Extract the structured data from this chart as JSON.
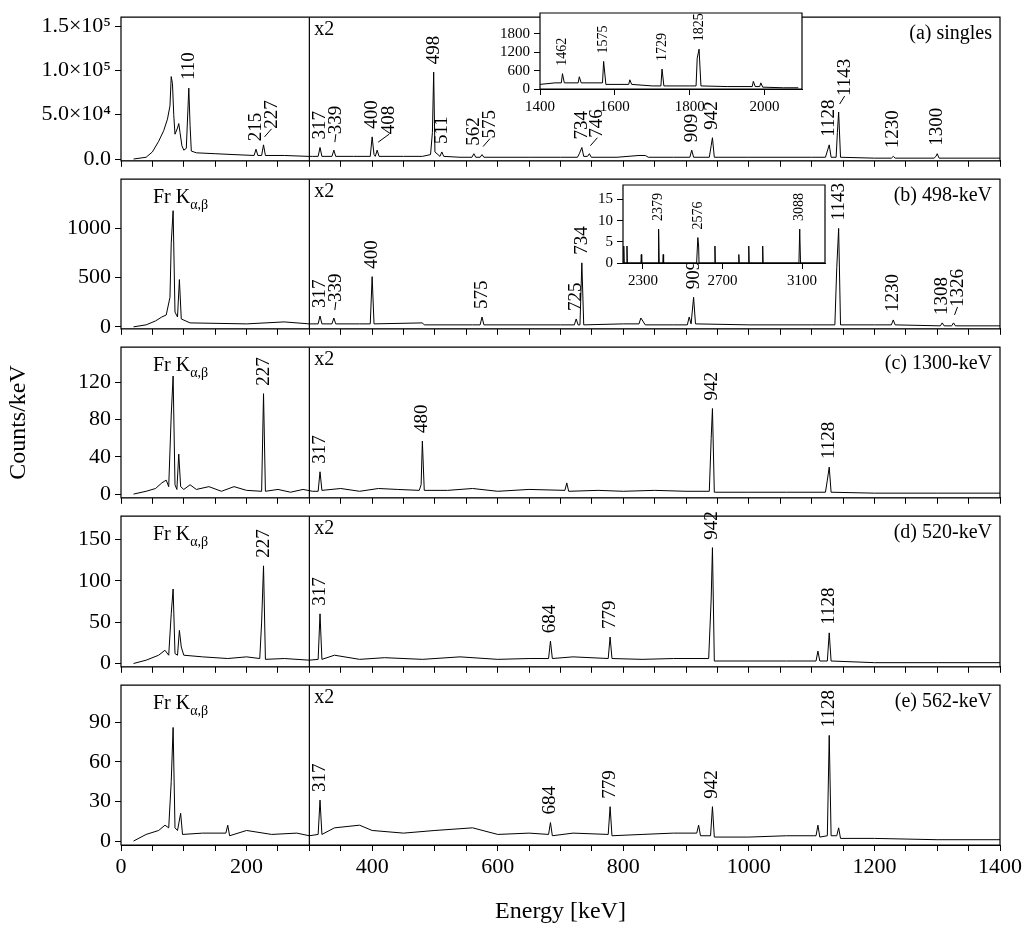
{
  "chart_data": [
    {
      "type": "line",
      "title": "(a) singles",
      "marker": "none",
      "tick_labels": "y",
      "xlim": [
        0,
        1400
      ],
      "xticks": [
        0,
        {
          "value": 50,
          "label": null
        },
        {
          "value": 100,
          "label": null
        },
        {
          "value": 150,
          "label": null
        },
        200,
        {
          "value": 250,
          "label": null
        },
        {
          "value": 300,
          "label": null
        },
        {
          "value": 350,
          "label": null
        },
        400,
        {
          "value": 450,
          "label": null
        },
        {
          "value": 500,
          "label": null
        },
        {
          "value": 550,
          "label": null
        },
        600,
        {
          "value": 650,
          "label": null
        },
        {
          "value": 700,
          "label": null
        },
        {
          "value": 750,
          "label": null
        },
        800,
        {
          "value": 850,
          "label": null
        },
        {
          "value": 900,
          "label": null
        },
        {
          "value": 950,
          "label": null
        },
        1000,
        {
          "value": 1050,
          "label": null
        },
        {
          "value": 1100,
          "label": null
        },
        {
          "value": 1150,
          "label": null
        },
        1200,
        {
          "value": 1250,
          "label": null
        },
        {
          "value": 1300,
          "label": null
        },
        {
          "value": 1350,
          "label": null
        },
        1400
      ],
      "ylim": [
        -2000,
        160000
      ],
      "yticks": [
        {
          "value": 0,
          "label": "0.0"
        },
        {
          "value": 50000,
          "label": "5.0×10⁴"
        },
        {
          "value": 100000,
          "label": "1.0×10⁵"
        },
        {
          "value": 150000,
          "label": "1.5×10⁵"
        }
      ],
      "ref_lines": [
        {
          "axis": "x",
          "value": 300,
          "label": "x2"
        }
      ],
      "series": [
        {
          "color": "#000000",
          "x": [
            20,
            40,
            50,
            60,
            68,
            74,
            78,
            80,
            82,
            84,
            86,
            90,
            92,
            94,
            97,
            100,
            104,
            108,
            110,
            112,
            120,
            150,
            180,
            212,
            215,
            218,
            224,
            227,
            230,
            260,
            298,
            305,
            314,
            317,
            320,
            336,
            339,
            342,
            370,
            397,
            400,
            403,
            405,
            408,
            411,
            450,
            480,
            493,
            496,
            498,
            500,
            508,
            511,
            514,
            540,
            559,
            562,
            565,
            572,
            575,
            578,
            650,
            700,
            727,
            730,
            734,
            737,
            743,
            746,
            749,
            790,
            825,
            835,
            840,
            880,
            906,
            909,
            912,
            937,
            940,
            942,
            945,
            1000,
            1100,
            1122,
            1125,
            1128,
            1131,
            1139,
            1141,
            1143,
            1146,
            1200,
            1227,
            1230,
            1233,
            1295,
            1298,
            1300,
            1303,
            1330,
            1400
          ],
          "values": [
            0,
            2000,
            8000,
            20000,
            32000,
            45000,
            60000,
            93000,
            85000,
            50000,
            28000,
            35000,
            40000,
            30000,
            15000,
            10000,
            12000,
            80000,
            38000,
            9000,
            7000,
            6000,
            5000,
            4000,
            11000,
            4000,
            4000,
            16000,
            4000,
            4000,
            3000,
            3000,
            3000,
            13000,
            3000,
            3000,
            10000,
            3000,
            3000,
            3000,
            25000,
            5000,
            3000,
            10000,
            3000,
            3000,
            3000,
            5000,
            30000,
            98000,
            8000,
            3000,
            8000,
            3000,
            2000,
            2000,
            6000,
            2000,
            2000,
            5000,
            2000,
            2000,
            2000,
            2000,
            6000,
            13000,
            3000,
            3000,
            6000,
            2000,
            2000,
            4000,
            4000,
            2000,
            2000,
            2000,
            10000,
            2000,
            2000,
            15000,
            24000,
            2000,
            2000,
            2000,
            2000,
            9000,
            16000,
            2000,
            2000,
            30000,
            53000,
            2000,
            1000,
            1000,
            3000,
            1000,
            1000,
            3000,
            6000,
            1000,
            1000,
            1000
          ]
        }
      ],
      "annotations": [
        {
          "text": "110",
          "x": 108,
          "y": 80000
        },
        {
          "text": "215",
          "x": 215,
          "y": 11000
        },
        {
          "text": "227",
          "x": 227,
          "y": 16000
        },
        {
          "text": "317",
          "x": 317,
          "y": 13000
        },
        {
          "text": "339",
          "x": 339,
          "y": 10000
        },
        {
          "text": "400",
          "x": 400,
          "y": 25000
        },
        {
          "text": "408",
          "x": 408,
          "y": 10000
        },
        {
          "text": "498",
          "x": 498,
          "y": 98000
        },
        {
          "text": "511",
          "x": 511,
          "y": 8000
        },
        {
          "text": "562",
          "x": 562,
          "y": 6000
        },
        {
          "text": "575",
          "x": 575,
          "y": 5000
        },
        {
          "text": "734",
          "x": 734,
          "y": 13000
        },
        {
          "text": "746",
          "x": 746,
          "y": 6000
        },
        {
          "text": "909",
          "x": 909,
          "y": 10000
        },
        {
          "text": "942",
          "x": 942,
          "y": 24000
        },
        {
          "text": "1128",
          "x": 1128,
          "y": 16000
        },
        {
          "text": "1143",
          "x": 1143,
          "y": 53000
        },
        {
          "text": "1230",
          "x": 1230,
          "y": 3000
        },
        {
          "text": "1300",
          "x": 1300,
          "y": 6000
        }
      ]
    },
    {
      "type": "line",
      "marker": "none",
      "xlim": [
        1400,
        2100
      ],
      "xticks": [
        1400,
        1600,
        1800,
        2000
      ],
      "ylim": [
        0,
        2480
      ],
      "yticks": [
        0,
        600,
        1200,
        1800
      ],
      "series": [
        {
          "color": "#000000",
          "x": [
            1400,
            1440,
            1457,
            1460,
            1465,
            1502,
            1505,
            1510,
            1567,
            1570,
            1576,
            1637,
            1640,
            1645,
            1700,
            1723,
            1726,
            1731,
            1800,
            1817,
            1820,
            1825,
            1830,
            1900,
            1967,
            1970,
            1975,
            1987,
            1990,
            1995,
            2050,
            2090
          ],
          "values": [
            150,
            200,
            200,
            500,
            200,
            200,
            400,
            200,
            200,
            900,
            150,
            150,
            300,
            150,
            100,
            100,
            650,
            100,
            100,
            100,
            1000,
            1300,
            100,
            80,
            80,
            250,
            80,
            80,
            200,
            60,
            40,
            40
          ]
        }
      ],
      "annotations": [
        {
          "text": "1462",
          "x": 1460,
          "y": 500
        },
        {
          "text": "1575",
          "x": 1570,
          "y": 900
        },
        {
          "text": "1729",
          "x": 1726,
          "y": 650
        },
        {
          "text": "1825",
          "x": 1825,
          "y": 1300
        }
      ]
    },
    {
      "type": "line",
      "title": "(b) 498-keV",
      "marker": "none",
      "tick_labels": "y",
      "xlim": [
        0,
        1400
      ],
      "xticks": [
        0,
        {
          "value": 50,
          "label": null
        },
        {
          "value": 100,
          "label": null
        },
        {
          "value": 150,
          "label": null
        },
        200,
        {
          "value": 250,
          "label": null
        },
        {
          "value": 300,
          "label": null
        },
        {
          "value": 350,
          "label": null
        },
        400,
        {
          "value": 450,
          "label": null
        },
        {
          "value": 500,
          "label": null
        },
        {
          "value": 550,
          "label": null
        },
        600,
        {
          "value": 650,
          "label": null
        },
        {
          "value": 700,
          "label": null
        },
        {
          "value": 750,
          "label": null
        },
        800,
        {
          "value": 850,
          "label": null
        },
        {
          "value": 900,
          "label": null
        },
        {
          "value": 950,
          "label": null
        },
        1000,
        {
          "value": 1050,
          "label": null
        },
        {
          "value": 1100,
          "label": null
        },
        {
          "value": 1150,
          "label": null
        },
        1200,
        {
          "value": 1250,
          "label": null
        },
        {
          "value": 1300,
          "label": null
        },
        {
          "value": 1350,
          "label": null
        },
        1400
      ],
      "ylim": [
        -20,
        1500
      ],
      "yticks": [
        0,
        500,
        1000
      ],
      "ref_lines": [
        {
          "axis": "x",
          "value": 300,
          "label": "x2"
        }
      ],
      "series": [
        {
          "color": "#000000",
          "x": [
            20,
            40,
            55,
            65,
            72,
            78,
            80,
            83,
            86,
            90,
            93,
            96,
            110,
            200,
            260,
            300,
            314,
            317,
            320,
            336,
            339,
            342,
            380,
            397,
            400,
            403,
            480,
            483,
            560,
            572,
            575,
            578,
            700,
            722,
            725,
            728,
            731,
            734,
            737,
            800,
            825,
            828,
            835,
            880,
            902,
            905,
            908,
            909,
            912,
            915,
            1000,
            1100,
            1137,
            1140,
            1143,
            1146,
            1200,
            1227,
            1230,
            1233,
            1305,
            1308,
            1311,
            1323,
            1326,
            1329,
            1400
          ],
          "values": [
            0,
            20,
            60,
            100,
            120,
            300,
            850,
            1180,
            150,
            100,
            480,
            80,
            40,
            30,
            50,
            30,
            30,
            110,
            30,
            30,
            90,
            30,
            30,
            30,
            510,
            30,
            40,
            20,
            20,
            20,
            100,
            20,
            20,
            20,
            80,
            20,
            20,
            650,
            20,
            30,
            30,
            90,
            20,
            20,
            20,
            100,
            30,
            30,
            300,
            30,
            20,
            20,
            20,
            600,
            1000,
            20,
            20,
            20,
            70,
            20,
            10,
            40,
            10,
            10,
            40,
            10,
            10
          ]
        }
      ],
      "annotations": [
        "Fr K$_{α,β}$",
        {
          "text": "317",
          "x": 317,
          "y": 110
        },
        {
          "text": "339",
          "x": 339,
          "y": 90
        },
        {
          "text": "400",
          "x": 400,
          "y": 510
        },
        {
          "text": "575",
          "x": 575,
          "y": 100
        },
        {
          "text": "725",
          "x": 725,
          "y": 80
        },
        {
          "text": "734",
          "x": 734,
          "y": 650
        },
        {
          "text": "909",
          "x": 912,
          "y": 300
        },
        {
          "text": "1143",
          "x": 1143,
          "y": 1000
        },
        {
          "text": "1230",
          "x": 1230,
          "y": 70
        },
        {
          "text": "1308",
          "x": 1308,
          "y": 40
        },
        {
          "text": "1326",
          "x": 1326,
          "y": 40
        }
      ]
    },
    {
      "type": "line",
      "marker": "none",
      "xlim": [
        2200,
        3215
      ],
      "xticks": [
        2300,
        2700,
        3100
      ],
      "ylim": [
        0,
        18.4
      ],
      "yticks": [
        0,
        5,
        10,
        15
      ],
      "series": [
        {
          "color": "#000000",
          "x": [
            2200,
            2204,
            2206,
            2218,
            2220,
            2222,
            2290,
            2292,
            2294,
            2376,
            2379,
            2382,
            2400,
            2402,
            2404,
            2570,
            2576,
            2580,
            2582,
            2660,
            2662,
            2664,
            2780,
            2782,
            2784,
            2830,
            2832,
            2834,
            2900,
            2902,
            2904,
            3084,
            3088,
            3092,
            3215
          ],
          "values": [
            0,
            4,
            0,
            0,
            4,
            0,
            0,
            2,
            0,
            0,
            8,
            0,
            0,
            2,
            0,
            0,
            6,
            4,
            0,
            0,
            4,
            0,
            0,
            2,
            0,
            0,
            4,
            0,
            0,
            4,
            0,
            0,
            8,
            0,
            0
          ]
        }
      ],
      "annotations": [
        {
          "text": "2379",
          "x": 2379,
          "y": 8
        },
        {
          "text": "2576",
          "x": 2576,
          "y": 6
        },
        {
          "text": "3088",
          "x": 3088,
          "y": 8
        }
      ]
    },
    {
      "type": "line",
      "title": "(c) 1300-keV",
      "ylabel": "Counts/keV",
      "marker": "none",
      "tick_labels": "y",
      "xlim": [
        0,
        1400
      ],
      "xticks": [
        0,
        {
          "value": 50,
          "label": null
        },
        {
          "value": 100,
          "label": null
        },
        {
          "value": 150,
          "label": null
        },
        200,
        {
          "value": 250,
          "label": null
        },
        {
          "value": 300,
          "label": null
        },
        {
          "value": 350,
          "label": null
        },
        400,
        {
          "value": 450,
          "label": null
        },
        {
          "value": 500,
          "label": null
        },
        {
          "value": 550,
          "label": null
        },
        600,
        {
          "value": 650,
          "label": null
        },
        {
          "value": 700,
          "label": null
        },
        {
          "value": 750,
          "label": null
        },
        800,
        {
          "value": 850,
          "label": null
        },
        {
          "value": 900,
          "label": null
        },
        {
          "value": 950,
          "label": null
        },
        1000,
        {
          "value": 1050,
          "label": null
        },
        {
          "value": 1100,
          "label": null
        },
        {
          "value": 1150,
          "label": null
        },
        1200,
        {
          "value": 1250,
          "label": null
        },
        {
          "value": 1300,
          "label": null
        },
        {
          "value": 1350,
          "label": null
        },
        1400
      ],
      "ylim": [
        -4,
        158
      ],
      "yticks": [
        0,
        40,
        80,
        120
      ],
      "ref_lines": [
        {
          "axis": "x",
          "value": 300,
          "label": "x2"
        }
      ],
      "series": [
        {
          "color": "#000000",
          "x": [
            20,
            40,
            55,
            65,
            72,
            76,
            80,
            83,
            86,
            89,
            92,
            95,
            100,
            110,
            120,
            140,
            160,
            180,
            200,
            224,
            227,
            230,
            250,
            270,
            290,
            305,
            314,
            317,
            320,
            350,
            380,
            410,
            440,
            475,
            478,
            480,
            483,
            520,
            560,
            600,
            650,
            707,
            710,
            713,
            760,
            800,
            850,
            900,
            937,
            940,
            942,
            945,
            1000,
            1060,
            1122,
            1125,
            1128,
            1131,
            1200,
            1300,
            1400
          ],
          "values": [
            0,
            3,
            6,
            12,
            15,
            8,
            85,
            127,
            10,
            5,
            43,
            8,
            5,
            10,
            5,
            8,
            3,
            8,
            4,
            3,
            108,
            3,
            5,
            2,
            5,
            3,
            3,
            24,
            4,
            6,
            3,
            6,
            5,
            4,
            10,
            57,
            4,
            4,
            6,
            3,
            5,
            4,
            12,
            3,
            4,
            3,
            4,
            3,
            3,
            60,
            92,
            2,
            2,
            2,
            2,
            15,
            29,
            2,
            1,
            1,
            1
          ]
        }
      ],
      "annotations": [
        "Fr K$_{α,β}$",
        {
          "text": "227",
          "x": 227,
          "y": 108
        },
        {
          "text": "317",
          "x": 317,
          "y": 24
        },
        {
          "text": "480",
          "x": 480,
          "y": 57
        },
        {
          "text": "942",
          "x": 942,
          "y": 92
        },
        {
          "text": "1128",
          "x": 1128,
          "y": 29
        }
      ]
    },
    {
      "type": "line",
      "title": "(d) 520-keV",
      "marker": "none",
      "tick_labels": "y",
      "xlim": [
        0,
        1400
      ],
      "xticks": [
        0,
        {
          "value": 50,
          "label": null
        },
        {
          "value": 100,
          "label": null
        },
        {
          "value": 150,
          "label": null
        },
        200,
        {
          "value": 250,
          "label": null
        },
        {
          "value": 300,
          "label": null
        },
        {
          "value": 350,
          "label": null
        },
        400,
        {
          "value": 450,
          "label": null
        },
        {
          "value": 500,
          "label": null
        },
        {
          "value": 550,
          "label": null
        },
        600,
        {
          "value": 650,
          "label": null
        },
        {
          "value": 700,
          "label": null
        },
        {
          "value": 750,
          "label": null
        },
        800,
        {
          "value": 850,
          "label": null
        },
        {
          "value": 900,
          "label": null
        },
        {
          "value": 950,
          "label": null
        },
        1000,
        {
          "value": 1050,
          "label": null
        },
        {
          "value": 1100,
          "label": null
        },
        {
          "value": 1150,
          "label": null
        },
        1200,
        {
          "value": 1250,
          "label": null
        },
        {
          "value": 1300,
          "label": null
        },
        {
          "value": 1350,
          "label": null
        },
        1400
      ],
      "ylim": [
        -4,
        178
      ],
      "yticks": [
        0,
        50,
        100,
        150
      ],
      "ref_lines": [
        {
          "axis": "x",
          "value": 300,
          "label": "x2"
        }
      ],
      "series": [
        {
          "color": "#000000",
          "x": [
            20,
            40,
            60,
            70,
            76,
            80,
            83,
            86,
            90,
            93,
            96,
            100,
            130,
            170,
            200,
            221,
            224,
            227,
            230,
            260,
            300,
            314,
            317,
            320,
            340,
            380,
            420,
            480,
            540,
            600,
            650,
            681,
            684,
            687,
            720,
            776,
            779,
            782,
            830,
            880,
            936,
            940,
            942,
            945,
            1000,
            1060,
            1107,
            1110,
            1113,
            1125,
            1128,
            1131,
            1200,
            1300,
            1400
          ],
          "values": [
            0,
            4,
            10,
            16,
            10,
            60,
            90,
            12,
            10,
            40,
            20,
            10,
            8,
            6,
            8,
            6,
            50,
            118,
            5,
            6,
            4,
            5,
            60,
            5,
            10,
            5,
            7,
            5,
            8,
            5,
            6,
            6,
            27,
            6,
            8,
            6,
            32,
            6,
            5,
            6,
            6,
            78,
            140,
            3,
            3,
            3,
            3,
            15,
            3,
            3,
            37,
            3,
            1,
            1,
            1
          ]
        }
      ],
      "annotations": [
        "Fr K$_{α,β}$",
        {
          "text": "227",
          "x": 227,
          "y": 118
        },
        {
          "text": "317",
          "x": 317,
          "y": 60
        },
        {
          "text": "684",
          "x": 684,
          "y": 27
        },
        {
          "text": "779",
          "x": 779,
          "y": 32
        },
        {
          "text": "942",
          "x": 942,
          "y": 140
        },
        {
          "text": "1128",
          "x": 1128,
          "y": 37
        }
      ]
    },
    {
      "type": "line",
      "title": "(e) 562-keV",
      "xlabel": "Energy [keV]",
      "marker": "none",
      "xlim": [
        0,
        1400
      ],
      "xticks": [
        0,
        {
          "value": 50,
          "label": null
        },
        {
          "value": 100,
          "label": null
        },
        {
          "value": 150,
          "label": null
        },
        200,
        {
          "value": 250,
          "label": null
        },
        {
          "value": 300,
          "label": null
        },
        {
          "value": 350,
          "label": null
        },
        400,
        {
          "value": 450,
          "label": null
        },
        {
          "value": 500,
          "label": null
        },
        {
          "value": 550,
          "label": null
        },
        600,
        {
          "value": 650,
          "label": null
        },
        {
          "value": 700,
          "label": null
        },
        {
          "value": 750,
          "label": null
        },
        800,
        {
          "value": 850,
          "label": null
        },
        {
          "value": 900,
          "label": null
        },
        {
          "value": 950,
          "label": null
        },
        1000,
        {
          "value": 1050,
          "label": null
        },
        {
          "value": 1100,
          "label": null
        },
        {
          "value": 1150,
          "label": null
        },
        1200,
        {
          "value": 1250,
          "label": null
        },
        {
          "value": 1300,
          "label": null
        },
        {
          "value": 1350,
          "label": null
        },
        1400
      ],
      "ylim": [
        -3,
        118
      ],
      "yticks": [
        0,
        30,
        60,
        90
      ],
      "ref_lines": [
        {
          "axis": "x",
          "value": 300,
          "label": "x2"
        }
      ],
      "series": [
        {
          "color": "#000000",
          "x": [
            20,
            40,
            60,
            70,
            76,
            80,
            83,
            86,
            90,
            95,
            98,
            130,
            167,
            170,
            173,
            200,
            240,
            280,
            300,
            314,
            317,
            320,
            340,
            380,
            400,
            450,
            500,
            560,
            600,
            650,
            681,
            684,
            687,
            720,
            776,
            779,
            782,
            830,
            880,
            917,
            920,
            923,
            939,
            942,
            945,
            1000,
            1060,
            1107,
            1110,
            1113,
            1125,
            1128,
            1131,
            1140,
            1143,
            1146,
            1200,
            1300,
            1400
          ],
          "values": [
            0,
            5,
            8,
            12,
            10,
            45,
            86,
            10,
            8,
            21,
            5,
            6,
            6,
            12,
            4,
            8,
            5,
            6,
            4,
            5,
            31,
            5,
            10,
            12,
            8,
            6,
            8,
            10,
            5,
            6,
            5,
            14,
            4,
            6,
            5,
            26,
            4,
            5,
            6,
            6,
            12,
            4,
            4,
            26,
            3,
            3,
            4,
            4,
            12,
            3,
            4,
            80,
            4,
            4,
            10,
            2,
            2,
            1,
            1
          ]
        }
      ],
      "annotations": [
        "Fr K$_{α,β}$",
        {
          "text": "317",
          "x": 317,
          "y": 31
        },
        {
          "text": "684",
          "x": 684,
          "y": 14
        },
        {
          "text": "779",
          "x": 779,
          "y": 26
        },
        {
          "text": "942",
          "x": 942,
          "y": 26
        },
        {
          "text": "1128",
          "x": 1128,
          "y": 80
        }
      ]
    }
  ]
}
